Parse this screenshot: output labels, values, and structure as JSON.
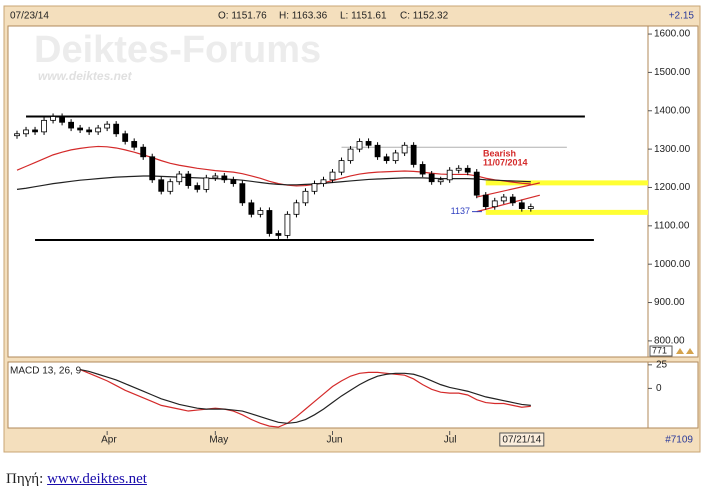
{
  "header": {
    "date": "07/23/14",
    "open": "O: 1151.76",
    "high": "H: 1163.36",
    "low": "L: 1151.61",
    "close": "C: 1152.32",
    "change": "+2.15"
  },
  "watermark": {
    "title": "Deiktes-Forums",
    "url": "www.deiktes.net"
  },
  "chart_data": [
    {
      "type": "candlestick",
      "xlim": [
        -1,
        70
      ],
      "ylim": [
        758,
        1621
      ],
      "yticks": [
        {
          "value": 1600,
          "label": "1600.00"
        },
        {
          "value": 1500,
          "label": "1500.00"
        },
        {
          "value": 1400,
          "label": "1400.00"
        },
        {
          "value": 1300,
          "label": "1300.00"
        },
        {
          "value": 1200,
          "label": "1200.00"
        },
        {
          "value": 1100,
          "label": "1100.00"
        },
        {
          "value": 1000,
          "label": "1000.00"
        },
        {
          "value": 900,
          "label": "900.00"
        },
        {
          "value": 800,
          "label": "800.00"
        }
      ],
      "xticks": [
        {
          "value": 10,
          "label": "Apr"
        },
        {
          "value": 22,
          "label": "May"
        },
        {
          "value": 35,
          "label": "Jun"
        },
        {
          "value": 48,
          "label": "Jul"
        }
      ],
      "cursor": {
        "value": 56,
        "label": "07/21/14"
      },
      "last_label": "771",
      "open": [
        1335,
        1340,
        1350,
        1345,
        1375,
        1385,
        1370,
        1355,
        1350,
        1345,
        1355,
        1365,
        1340,
        1320,
        1305,
        1280,
        1220,
        1190,
        1215,
        1235,
        1205,
        1195,
        1225,
        1230,
        1220,
        1210,
        1160,
        1130,
        1140,
        1080,
        1075,
        1130,
        1160,
        1190,
        1210,
        1220,
        1240,
        1270,
        1300,
        1320,
        1310,
        1280,
        1270,
        1290,
        1310,
        1260,
        1235,
        1215,
        1220,
        1245,
        1250,
        1240,
        1180,
        1150,
        1165,
        1175,
        1160,
        1145
      ],
      "high": [
        1348,
        1358,
        1358,
        1383,
        1393,
        1393,
        1378,
        1363,
        1358,
        1363,
        1373,
        1373,
        1348,
        1328,
        1313,
        1288,
        1228,
        1223,
        1243,
        1243,
        1213,
        1233,
        1238,
        1238,
        1228,
        1218,
        1168,
        1148,
        1148,
        1088,
        1138,
        1168,
        1198,
        1218,
        1228,
        1248,
        1278,
        1308,
        1328,
        1328,
        1318,
        1288,
        1298,
        1318,
        1318,
        1268,
        1243,
        1228,
        1253,
        1258,
        1258,
        1248,
        1188,
        1173,
        1183,
        1183,
        1168,
        1158
      ],
      "low": [
        1327,
        1332,
        1337,
        1337,
        1367,
        1362,
        1347,
        1342,
        1337,
        1337,
        1347,
        1332,
        1312,
        1297,
        1272,
        1212,
        1182,
        1182,
        1207,
        1197,
        1187,
        1187,
        1217,
        1212,
        1202,
        1152,
        1122,
        1122,
        1072,
        1063,
        1067,
        1122,
        1152,
        1182,
        1202,
        1212,
        1232,
        1262,
        1292,
        1302,
        1272,
        1262,
        1262,
        1282,
        1252,
        1227,
        1207,
        1207,
        1212,
        1237,
        1232,
        1172,
        1142,
        1142,
        1157,
        1152,
        1137,
        1137
      ],
      "close": [
        1340,
        1350,
        1345,
        1375,
        1385,
        1370,
        1355,
        1350,
        1345,
        1355,
        1365,
        1340,
        1320,
        1305,
        1280,
        1220,
        1190,
        1215,
        1235,
        1205,
        1195,
        1225,
        1230,
        1220,
        1210,
        1160,
        1130,
        1140,
        1080,
        1075,
        1130,
        1160,
        1190,
        1210,
        1220,
        1240,
        1270,
        1300,
        1320,
        1310,
        1280,
        1270,
        1290,
        1310,
        1260,
        1235,
        1215,
        1220,
        1245,
        1250,
        1240,
        1180,
        1150,
        1165,
        1175,
        1160,
        1145,
        1150
      ],
      "overlays": [
        {
          "color": "#d42a2a",
          "values": [
            1245,
            1255,
            1265,
            1275,
            1285,
            1292,
            1298,
            1302,
            1305,
            1307,
            1306,
            1303,
            1298,
            1292,
            1285,
            1278,
            1270,
            1263,
            1258,
            1254,
            1250,
            1247,
            1244,
            1242,
            1240,
            1236,
            1230,
            1224,
            1216,
            1210,
            1206,
            1204,
            1205,
            1208,
            1212,
            1218,
            1224,
            1230,
            1235,
            1238,
            1240,
            1241,
            1242,
            1243,
            1242,
            1240,
            1237,
            1235,
            1234,
            1234,
            1234,
            1230,
            1224,
            1220,
            1217,
            1214,
            1211,
            1209
          ]
        },
        {
          "color": "#222222",
          "values": [
            1195,
            1198,
            1202,
            1206,
            1210,
            1213,
            1216,
            1219,
            1221,
            1223,
            1225,
            1227,
            1228,
            1229,
            1230,
            1230,
            1229,
            1228,
            1227,
            1226,
            1225,
            1224,
            1223,
            1222,
            1221,
            1219,
            1216,
            1213,
            1210,
            1208,
            1207,
            1207,
            1208,
            1209,
            1211,
            1213,
            1215,
            1217,
            1219,
            1221,
            1222,
            1223,
            1224,
            1225,
            1225,
            1225,
            1224,
            1223,
            1223,
            1223,
            1223,
            1222,
            1220,
            1219,
            1218,
            1217,
            1216,
            1215
          ]
        }
      ],
      "levels": [
        {
          "value": 1385,
          "from": 1,
          "to": 63,
          "color": "#000000",
          "width": 2
        },
        {
          "value": 1063,
          "from": 2,
          "to": 64,
          "color": "#000000",
          "width": 2
        },
        {
          "value": 1305,
          "from": 36,
          "to": 61,
          "color": "#b0b0b0",
          "width": 1
        },
        {
          "value": 1212,
          "from": 52,
          "to": 70,
          "color": "#ffff33",
          "width": 5
        },
        {
          "value": 1135,
          "from": 52,
          "to": 70,
          "color": "#ffff33",
          "width": 5
        }
      ],
      "trendlines": [
        {
          "x": [
            51,
            58
          ],
          "y": [
            1175,
            1212
          ],
          "color": "#d42a2a"
        },
        {
          "x": [
            51,
            58
          ],
          "y": [
            1137,
            1180
          ],
          "color": "#d42a2a"
        }
      ],
      "annotation": {
        "title": "Bearish",
        "date": "11/07/2014"
      },
      "low_label": 1137
    },
    {
      "type": "line",
      "title": "MACD 13, 26, 9",
      "xlim": [
        -1,
        70
      ],
      "ylim": [
        -42,
        28
      ],
      "yticks": [
        0,
        25
      ],
      "series": [
        {
          "color": "#d42a2a",
          "values": [
            null,
            null,
            null,
            null,
            null,
            null,
            null,
            20,
            16,
            12,
            8,
            3,
            -2,
            -6,
            -10,
            -14,
            -18,
            -20,
            -22,
            -24,
            -23,
            -22,
            -21,
            -22,
            -24,
            -28,
            -33,
            -37,
            -40,
            -41,
            -37,
            -30,
            -22,
            -14,
            -6,
            2,
            8,
            13,
            16,
            17,
            17,
            16,
            15,
            14,
            10,
            4,
            -1,
            -4,
            -5,
            -5,
            -7,
            -12,
            -15,
            -16,
            -16,
            -18,
            -20,
            -19
          ]
        },
        {
          "color": "#222222",
          "values": [
            null,
            null,
            null,
            null,
            null,
            null,
            null,
            20,
            18,
            15,
            12,
            9,
            5,
            1,
            -3,
            -7,
            -11,
            -14,
            -17,
            -19,
            -21,
            -22,
            -22,
            -22,
            -23,
            -24,
            -27,
            -30,
            -33,
            -36,
            -37,
            -36,
            -33,
            -28,
            -22,
            -15,
            -8,
            -2,
            4,
            9,
            13,
            15,
            16,
            16,
            15,
            12,
            8,
            4,
            1,
            -1,
            -3,
            -6,
            -9,
            -11,
            -13,
            -15,
            -17,
            -18
          ]
        }
      ]
    }
  ],
  "footer": {
    "id": "#7109"
  },
  "caption": {
    "label": "Πηγή:",
    "link": "www.deiktes.net"
  }
}
